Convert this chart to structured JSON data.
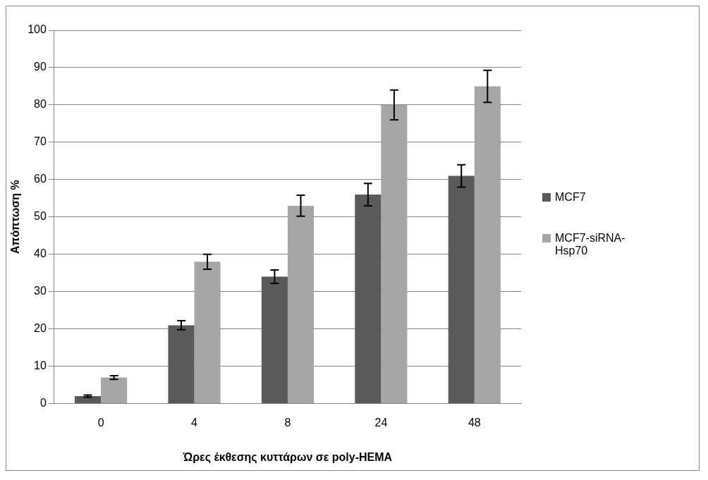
{
  "chart_data": {
    "type": "bar",
    "xlabel": "Ώρες έκθεσης κυττάρων σε poly-HEMA",
    "ylabel": "Απόπτωση %",
    "categories": [
      "0",
      "4",
      "8",
      "24",
      "48"
    ],
    "series": [
      {
        "name": "MCF7",
        "color": "#5a5a5a",
        "values": [
          2,
          21,
          34,
          56,
          61
        ],
        "errors": [
          0.3,
          1.2,
          1.8,
          3,
          3
        ]
      },
      {
        "name": "MCF7-siRNA-Hsp70",
        "color": "#a6a6a6",
        "values": [
          7,
          38,
          53,
          80,
          85
        ],
        "errors": [
          0.5,
          2,
          2.8,
          4,
          4.3
        ]
      }
    ],
    "ylim": [
      0,
      100
    ],
    "yticks": [
      0,
      10,
      20,
      30,
      40,
      50,
      60,
      70,
      80,
      90,
      100
    ],
    "grid": "y",
    "legend": "right"
  }
}
